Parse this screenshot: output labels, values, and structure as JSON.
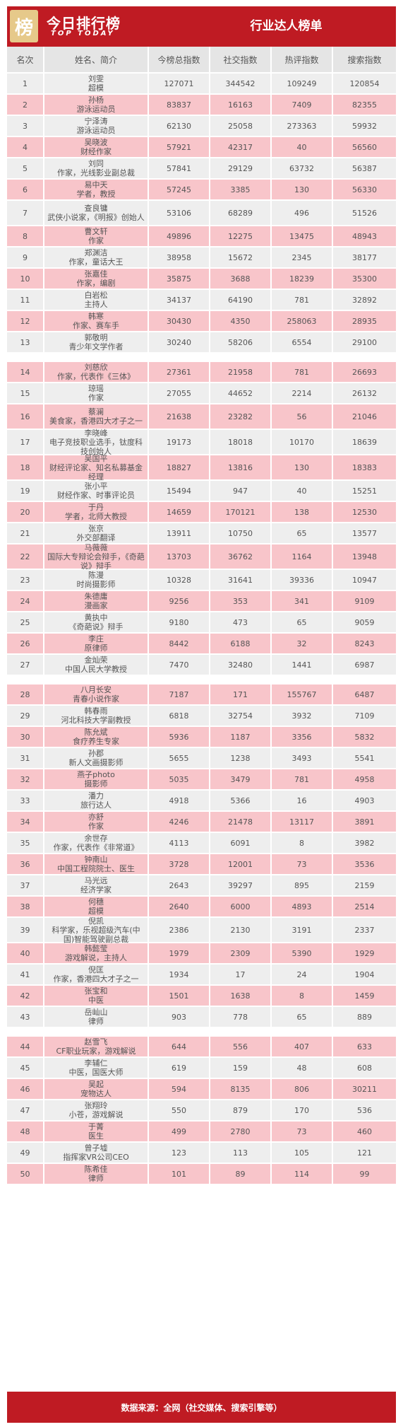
{
  "header": {
    "logo_char": "榜",
    "brand_cn": "今日排行榜",
    "brand_en": "TOP TODAY",
    "title": "行业达人榜单"
  },
  "columns": [
    "名次",
    "姓名、简介",
    "今榜总指数",
    "社交指数",
    "热评指数",
    "搜索指数"
  ],
  "rows": [
    {
      "rank": "1",
      "name": "刘雯",
      "desc": "超模",
      "total": "127071",
      "social": "344542",
      "hot": "109249",
      "search": "120854"
    },
    {
      "rank": "2",
      "name": "孙杨",
      "desc": "游泳运动员",
      "total": "83837",
      "social": "16163",
      "hot": "7409",
      "search": "82355"
    },
    {
      "rank": "3",
      "name": "宁泽涛",
      "desc": "游泳运动员",
      "total": "62130",
      "social": "25058",
      "hot": "273363",
      "search": "59932"
    },
    {
      "rank": "4",
      "name": "吴晓波",
      "desc": "财经作家",
      "total": "57921",
      "social": "42317",
      "hot": "40",
      "search": "56560"
    },
    {
      "rank": "5",
      "name": "刘同",
      "desc": "作家，光线影业副总裁",
      "total": "57841",
      "social": "29129",
      "hot": "63732",
      "search": "56387"
    },
    {
      "rank": "6",
      "name": "易中天",
      "desc": "学者，教授",
      "total": "57245",
      "social": "3385",
      "hot": "130",
      "search": "56330"
    },
    {
      "rank": "7",
      "name": "查良镛",
      "desc": "武侠小说家，《明报》创始人",
      "total": "53106",
      "social": "68289",
      "hot": "496",
      "search": "51526"
    },
    {
      "rank": "8",
      "name": "曹文轩",
      "desc": "作家",
      "total": "49896",
      "social": "12275",
      "hot": "13475",
      "search": "48943"
    },
    {
      "rank": "9",
      "name": "郑渊洁",
      "desc": "作家，童话大王",
      "total": "38958",
      "social": "15672",
      "hot": "2345",
      "search": "38177"
    },
    {
      "rank": "10",
      "name": "张嘉佳",
      "desc": "作家，编剧",
      "total": "35875",
      "social": "3688",
      "hot": "18239",
      "search": "35300"
    },
    {
      "rank": "11",
      "name": "白岩松",
      "desc": "主持人",
      "total": "34137",
      "social": "64190",
      "hot": "781",
      "search": "32892"
    },
    {
      "rank": "12",
      "name": "韩寒",
      "desc": "作家、赛车手",
      "total": "30430",
      "social": "4350",
      "hot": "258063",
      "search": "28935"
    },
    {
      "rank": "13",
      "name": "郭敬明",
      "desc": "青少年文学作者",
      "total": "30240",
      "social": "58206",
      "hot": "6554",
      "search": "29100"
    },
    {
      "rank": "14",
      "name": "刘慈欣",
      "desc": "作家，代表作《三体》",
      "total": "27361",
      "social": "21958",
      "hot": "781",
      "search": "26693"
    },
    {
      "rank": "15",
      "name": "琼瑶",
      "desc": "作家",
      "total": "27055",
      "social": "44652",
      "hot": "2214",
      "search": "26132"
    },
    {
      "rank": "16",
      "name": "蔡澜",
      "desc": "美食家，香港四大才子之一",
      "total": "21638",
      "social": "23282",
      "hot": "56",
      "search": "21046"
    },
    {
      "rank": "17",
      "name": "李晓峰",
      "desc": "电子竞技职业选手，钛度科技创始人",
      "total": "19173",
      "social": "18018",
      "hot": "10170",
      "search": "18639"
    },
    {
      "rank": "18",
      "name": "吴国平",
      "desc": "财经评论家、知名私募基金经理",
      "total": "18827",
      "social": "13816",
      "hot": "130",
      "search": "18383"
    },
    {
      "rank": "19",
      "name": "张小平",
      "desc": "财经作家、时事评论员",
      "total": "15494",
      "social": "947",
      "hot": "40",
      "search": "15251"
    },
    {
      "rank": "20",
      "name": "于丹",
      "desc": "学者，北师大教授",
      "total": "14659",
      "social": "170121",
      "hot": "138",
      "search": "12530"
    },
    {
      "rank": "21",
      "name": "张京",
      "desc": "外交部翻译",
      "total": "13911",
      "social": "10750",
      "hot": "65",
      "search": "13577"
    },
    {
      "rank": "22",
      "name": "马薇薇",
      "desc": "国际大专辩论会辩手，《奇葩说》辩手",
      "total": "13703",
      "social": "36762",
      "hot": "1164",
      "search": "13948"
    },
    {
      "rank": "23",
      "name": "陈漫",
      "desc": "时尚摄影师",
      "total": "10328",
      "social": "31641",
      "hot": "39336",
      "search": "10947"
    },
    {
      "rank": "24",
      "name": "朱德庸",
      "desc": "漫画家",
      "total": "9256",
      "social": "353",
      "hot": "341",
      "search": "9109"
    },
    {
      "rank": "25",
      "name": "黄执中",
      "desc": "《奇葩说》辩手",
      "total": "9180",
      "social": "473",
      "hot": "65",
      "search": "9059"
    },
    {
      "rank": "26",
      "name": "李庄",
      "desc": "原律师",
      "total": "8442",
      "social": "6188",
      "hot": "32",
      "search": "8243"
    },
    {
      "rank": "27",
      "name": "金灿荣",
      "desc": "中国人民大学教授",
      "total": "7470",
      "social": "32480",
      "hot": "1441",
      "search": "6987"
    },
    {
      "rank": "28",
      "name": "八月长安",
      "desc": "青春小说作家",
      "total": "7187",
      "social": "171",
      "hot": "155767",
      "search": "6487"
    },
    {
      "rank": "29",
      "name": "韩春雨",
      "desc": "河北科技大学副教授",
      "total": "6818",
      "social": "32754",
      "hot": "3932",
      "search": "7109"
    },
    {
      "rank": "30",
      "name": "陈允斌",
      "desc": "食疗养生专家",
      "total": "5936",
      "social": "1187",
      "hot": "3356",
      "search": "5832"
    },
    {
      "rank": "31",
      "name": "孙郡",
      "desc": "新人文画摄影师",
      "total": "5655",
      "social": "1238",
      "hot": "3493",
      "search": "5541"
    },
    {
      "rank": "32",
      "name": "燕子photo",
      "desc": "摄影师",
      "total": "5035",
      "social": "3479",
      "hot": "781",
      "search": "4958"
    },
    {
      "rank": "33",
      "name": "潘力",
      "desc": "旅行达人",
      "total": "4918",
      "social": "5366",
      "hot": "16",
      "search": "4903"
    },
    {
      "rank": "34",
      "name": "亦舒",
      "desc": "作家",
      "total": "4246",
      "social": "21478",
      "hot": "13117",
      "search": "3891"
    },
    {
      "rank": "35",
      "name": "余世存",
      "desc": "作家，代表作《非常道》",
      "total": "4113",
      "social": "6091",
      "hot": "8",
      "search": "3982"
    },
    {
      "rank": "36",
      "name": "钟南山",
      "desc": "中国工程院院士、医生",
      "total": "3728",
      "social": "12001",
      "hot": "73",
      "search": "3536"
    },
    {
      "rank": "37",
      "name": "马光远",
      "desc": "经济学家",
      "total": "2643",
      "social": "39297",
      "hot": "895",
      "search": "2159"
    },
    {
      "rank": "38",
      "name": "何穗",
      "desc": "超模",
      "total": "2640",
      "social": "6000",
      "hot": "4893",
      "search": "2514"
    },
    {
      "rank": "39",
      "name": "倪凯",
      "desc": "科学家，乐视超级汽车(中国)智能驾驶副总裁",
      "total": "2386",
      "social": "2130",
      "hot": "3191",
      "search": "2337"
    },
    {
      "rank": "40",
      "name": "韩懿莹",
      "desc": "游戏解说，主持人",
      "total": "1979",
      "social": "2309",
      "hot": "5390",
      "search": "1929"
    },
    {
      "rank": "41",
      "name": "倪匡",
      "desc": "作家，香港四大才子之一",
      "total": "1934",
      "social": "17",
      "hot": "24",
      "search": "1904"
    },
    {
      "rank": "42",
      "name": "张宝和",
      "desc": "中医",
      "total": "1501",
      "social": "1638",
      "hot": "8",
      "search": "1459"
    },
    {
      "rank": "43",
      "name": "岳屾山",
      "desc": "律师",
      "total": "903",
      "social": "778",
      "hot": "65",
      "search": "889"
    },
    {
      "rank": "44",
      "name": "赵雪飞",
      "desc": "CF职业玩家，游戏解说",
      "total": "644",
      "social": "556",
      "hot": "407",
      "search": "633"
    },
    {
      "rank": "45",
      "name": "李辅仁",
      "desc": "中医，国医大师",
      "total": "619",
      "social": "159",
      "hot": "48",
      "search": "608"
    },
    {
      "rank": "46",
      "name": "吴起",
      "desc": "宠物达人",
      "total": "594",
      "social": "8135",
      "hot": "806",
      "search": "30211"
    },
    {
      "rank": "47",
      "name": "张翔玲",
      "desc": "小苍，游戏解说",
      "total": "550",
      "social": "879",
      "hot": "170",
      "search": "536"
    },
    {
      "rank": "48",
      "name": "于菁",
      "desc": "医生",
      "total": "499",
      "social": "2780",
      "hot": "73",
      "search": "460"
    },
    {
      "rank": "49",
      "name": "曾子墟",
      "desc": "指挥家VR公司CEO",
      "total": "123",
      "social": "113",
      "hot": "105",
      "search": "121"
    },
    {
      "rank": "50",
      "name": "陈希佳",
      "desc": "律师",
      "total": "101",
      "social": "89",
      "hot": "114",
      "search": "99"
    }
  ],
  "footer": {
    "text": "数据来源：全网（社交媒体、搜索引擎等）"
  },
  "colors": {
    "brand_red": "#bf1b23",
    "row_grey": "#eeeeee",
    "row_pink": "#f8c5ca",
    "header_grey": "#e5e5e5"
  }
}
